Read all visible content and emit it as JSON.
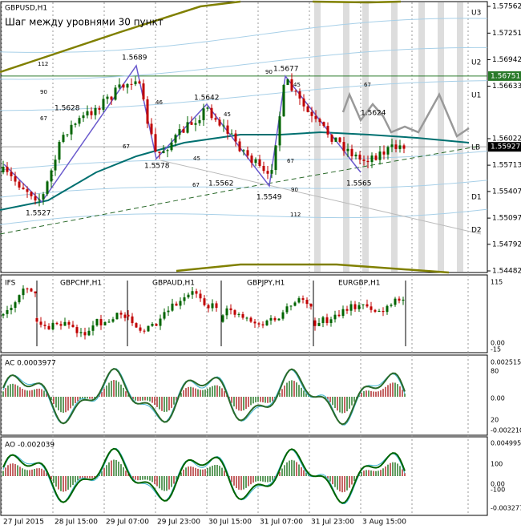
{
  "main": {
    "symbol": "GBPUSD,H1",
    "subtitle": "Шаг между уровнями 30 пункт",
    "price_axis": [
      "1.57562",
      "1.57251",
      "1.56942",
      "1.56633",
      "1.56022",
      "1.55713",
      "1.55407",
      "1.55097",
      "1.54792",
      "1.54482"
    ],
    "current_prices": [
      "1.56751",
      "1.55927"
    ],
    "level_labels": [
      "U3",
      "U2",
      "U1",
      "LB",
      "D1",
      "D2"
    ],
    "peak_labels": [
      "1.5689",
      "1.5628",
      "1.5642",
      "1.5578",
      "1.5562",
      "1.5527",
      "1.5677",
      "1.5549",
      "1.5624",
      "1.5565"
    ],
    "fib_labels": [
      "112",
      "90",
      "67",
      "67",
      "46",
      "45",
      "45",
      "67",
      "90",
      "45",
      "67",
      "67",
      "90",
      "112"
    ]
  },
  "indicators": [
    {
      "name": "IFS",
      "pairs": [
        "GBPCHF,H1",
        "GBPAUD,H1",
        "GBPJPY,H1",
        "EURGBP,H1"
      ],
      "axis": [
        "115",
        "0.00",
        "-15"
      ]
    },
    {
      "name": "AC 0.0003977",
      "axis": [
        "0.002515",
        "80",
        "0.00",
        "20",
        "-0.002210"
      ]
    },
    {
      "name": "AO -0.002039",
      "axis": [
        "0.004995",
        "100",
        "0.00",
        "-100",
        "-0.003277"
      ]
    }
  ],
  "time_axis": [
    "27 Jul 2015",
    "28 Jul 15:00",
    "29 Jul 07:00",
    "29 Jul 23:00",
    "30 Jul 15:00",
    "31 Jul 07:00",
    "31 Jul 23:00",
    "3 Aug 15:00"
  ]
}
